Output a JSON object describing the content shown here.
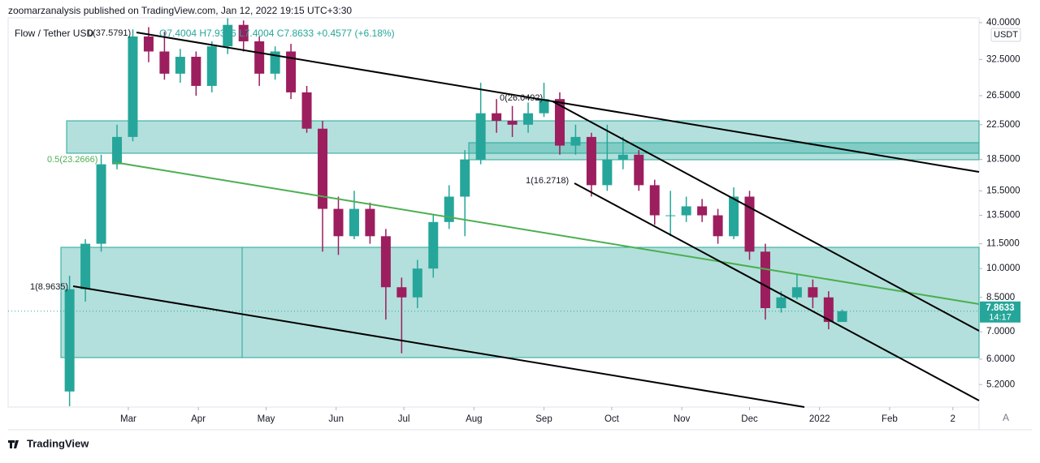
{
  "header": {
    "publisher": "zoomarzanalysis published on TradingView.com, Jan 12, 2022 19:15 UTC+3:30"
  },
  "chart_data": {
    "type": "candlestick",
    "symbol": "Flow / Tether USD",
    "ohlc_text": "O7.4004 H7.9366 L7.4004 C7.8633 +0.4577 (+6.18%)",
    "currency": "USDT",
    "log_scale": true,
    "up_color": "#26a69a",
    "down_color": "#9c1e5e",
    "x": [
      33,
      40,
      47,
      54,
      61,
      68,
      75,
      82,
      89,
      96,
      103,
      110,
      117,
      124,
      131,
      138,
      145,
      152,
      159,
      166,
      173,
      180,
      187,
      194,
      201,
      208,
      215,
      222,
      229,
      236,
      243,
      250,
      257,
      264,
      271,
      278,
      285,
      292,
      299,
      306,
      313,
      320,
      327,
      334,
      341,
      348,
      355,
      362,
      369,
      375
    ],
    "open": [
      5.0,
      8.9,
      11.5,
      18.0,
      21.0,
      37.0,
      34.0,
      30.0,
      33.0,
      28.0,
      35.0,
      39.5,
      36.0,
      30.0,
      34.0,
      27.0,
      22.0,
      14.0,
      12.0,
      14.0,
      12.0,
      9.0,
      8.5,
      10.0,
      13.0,
      15.0,
      18.5,
      24.0,
      23.0,
      22.5,
      24.0,
      26.0,
      20.0,
      21.0,
      16.0,
      18.5,
      19.0,
      16.0,
      13.5,
      13.5,
      14.2,
      13.5,
      12.0,
      15.0,
      11.0,
      8.0,
      8.5,
      9.0,
      8.5,
      7.4004
    ],
    "high": [
      9.6,
      11.8,
      19.0,
      22.5,
      38.5,
      39.0,
      38.0,
      34.5,
      34.0,
      36.0,
      41.0,
      40.5,
      37.0,
      35.0,
      35.5,
      28.0,
      23.0,
      15.0,
      15.5,
      14.5,
      12.5,
      9.5,
      10.5,
      13.5,
      16.0,
      19.5,
      28.5,
      26.0,
      25.0,
      25.5,
      28.5,
      27.0,
      22.5,
      21.5,
      22.5,
      21.0,
      19.5,
      16.5,
      15.5,
      15.0,
      14.8,
      14.0,
      15.8,
      15.5,
      11.5,
      8.8,
      9.7,
      9.4,
      8.8,
      7.9366
    ],
    "low": [
      4.6,
      8.3,
      11.0,
      17.5,
      20.5,
      32.0,
      29.0,
      28.5,
      26.5,
      27.0,
      33.5,
      34.0,
      28.0,
      29.0,
      26.0,
      21.5,
      11.0,
      10.8,
      11.8,
      11.5,
      7.5,
      6.2,
      8.0,
      9.5,
      12.5,
      12.0,
      18.0,
      21.5,
      21.0,
      21.5,
      23.5,
      19.0,
      19.0,
      15.0,
      15.5,
      17.5,
      15.5,
      12.8,
      12.0,
      13.0,
      13.0,
      11.5,
      11.8,
      10.5,
      7.5,
      7.8,
      8.4,
      8.0,
      7.1,
      7.4004
    ],
    "close": [
      8.9,
      11.5,
      18.0,
      21.0,
      37.0,
      34.0,
      30.0,
      33.0,
      28.0,
      35.0,
      39.5,
      36.0,
      30.0,
      34.0,
      27.0,
      22.0,
      14.0,
      12.0,
      14.0,
      12.0,
      9.0,
      8.5,
      10.0,
      13.0,
      15.0,
      18.5,
      24.0,
      23.0,
      22.5,
      24.0,
      26.0,
      20.0,
      21.0,
      16.0,
      18.5,
      19.0,
      16.0,
      13.5,
      13.5,
      14.2,
      13.5,
      12.0,
      15.0,
      11.0,
      8.0,
      8.5,
      9.0,
      8.5,
      7.4,
      7.8633
    ],
    "xlim": [
      5.8,
      435.6
    ],
    "xticks": [
      {
        "value": 59,
        "label": "Mar"
      },
      {
        "value": 90,
        "label": "Apr"
      },
      {
        "value": 120,
        "label": "May"
      },
      {
        "value": 151,
        "label": "Jun"
      },
      {
        "value": 181,
        "label": "Jul"
      },
      {
        "value": 212,
        "label": "Aug"
      },
      {
        "value": 243,
        "label": "Sep"
      },
      {
        "value": 273,
        "label": "Oct"
      },
      {
        "value": 304,
        "label": "Nov"
      },
      {
        "value": 334,
        "label": "Dec"
      },
      {
        "value": 365,
        "label": "2022"
      },
      {
        "value": 396,
        "label": "Feb"
      },
      {
        "value": 424,
        "label": "2"
      }
    ],
    "ylim": [
      4.58,
      41.1
    ],
    "yticks": [
      {
        "value": 40,
        "label": "40.0000"
      },
      {
        "value": 32.5,
        "label": "32.5000"
      },
      {
        "value": 26.5,
        "label": "26.5000"
      },
      {
        "value": 22.5,
        "label": "22.5000"
      },
      {
        "value": 18.5,
        "label": "18.5000"
      },
      {
        "value": 15.5,
        "label": "15.5000"
      },
      {
        "value": 13.5,
        "label": "13.5000"
      },
      {
        "value": 11.5,
        "label": "11.5000"
      },
      {
        "value": 10,
        "label": "10.0000"
      },
      {
        "value": 8.5,
        "label": "8.5000"
      },
      {
        "value": 7,
        "label": "7.0000"
      },
      {
        "value": 6,
        "label": "6.0000"
      },
      {
        "value": 5.2,
        "label": "5.2000"
      }
    ],
    "annotations": [
      "0(37.5791)",
      "0.5(23.2666)",
      "1(8.9635)",
      "0(26.0492)",
      "1(16.2718)"
    ],
    "last_price_label": "7.8633",
    "countdown": "14:17",
    "auto_button": "A"
  },
  "footer": {
    "brand": "TradingView"
  }
}
